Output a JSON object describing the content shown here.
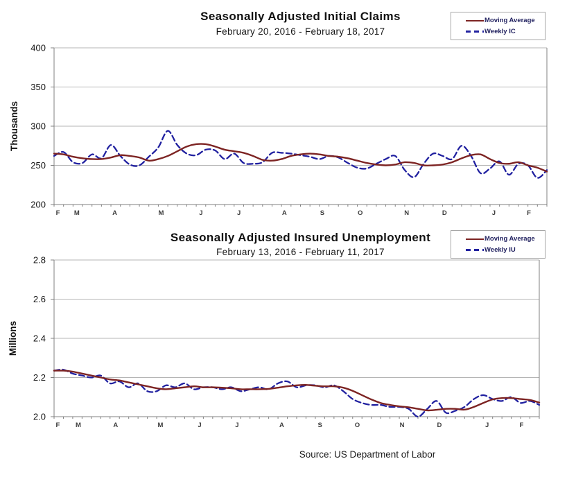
{
  "footer": {
    "source": "Source: US Department of Labor"
  },
  "colors": {
    "moving_average": "#7D2423",
    "weekly": "#2121A0",
    "gridline": "#B5B5B5",
    "axis": "#808080",
    "tick_text": "#141414",
    "month_text": "#3D3D3D",
    "legend_text": "#1F1F5E",
    "legend_border": "#A6A6A6"
  },
  "chart_data": [
    {
      "type": "line",
      "title": "Seasonally Adjusted Initial Claims",
      "subtitle": "February 20, 2016  -  February 18, 2017",
      "xlabel": "",
      "ylabel": "Thousands",
      "ylim": [
        200,
        400
      ],
      "yticks": [
        200,
        250,
        300,
        350,
        400
      ],
      "ytick_format": "int",
      "grid": true,
      "legend_position": "top-right",
      "month_ticks": [
        {
          "label": "F",
          "week": 0.4
        },
        {
          "label": "M",
          "week": 2.4
        },
        {
          "label": "A",
          "week": 6.4
        },
        {
          "label": "M",
          "week": 11.3
        },
        {
          "label": "J",
          "week": 15.5
        },
        {
          "label": "J",
          "week": 19.5
        },
        {
          "label": "A",
          "week": 24.3
        },
        {
          "label": "S",
          "week": 28.3
        },
        {
          "label": "O",
          "week": 32.3
        },
        {
          "label": "N",
          "week": 37.2
        },
        {
          "label": "D",
          "week": 41.2
        },
        {
          "label": "J",
          "week": 46.4
        },
        {
          "label": "F",
          "week": 50.1
        }
      ],
      "series": [
        {
          "name": "Moving Average",
          "style": "solid",
          "color": "#7D2423",
          "values": [
            265,
            264,
            261,
            259,
            258,
            258,
            260,
            263,
            262,
            260,
            256,
            258,
            262,
            268,
            274,
            277,
            277,
            274,
            270,
            268,
            266,
            262,
            257,
            256,
            258,
            262,
            264,
            265,
            264,
            262,
            261,
            259,
            256,
            253,
            251,
            250,
            251,
            254,
            253,
            250,
            250,
            251,
            254,
            259,
            263,
            264,
            258,
            253,
            252,
            254,
            250,
            247,
            242
          ]
        },
        {
          "name": "Weekly IC",
          "style": "dashed",
          "color": "#2121A0",
          "values": [
            262,
            267,
            254,
            253,
            264,
            259,
            276,
            262,
            251,
            250,
            261,
            273,
            294,
            276,
            265,
            263,
            270,
            269,
            258,
            265,
            253,
            252,
            254,
            266,
            266,
            265,
            263,
            261,
            258,
            262,
            260,
            253,
            247,
            246,
            252,
            258,
            262,
            244,
            235,
            252,
            265,
            262,
            258,
            275,
            262,
            240,
            246,
            255,
            238,
            252,
            250,
            234,
            244
          ]
        }
      ]
    },
    {
      "type": "line",
      "title": "Seasonally Adjusted Insured Unemployment",
      "subtitle": "February 13, 2016  -  February 11, 2017",
      "xlabel": "",
      "ylabel": "Millions",
      "ylim": [
        2.0,
        2.8
      ],
      "yticks": [
        2.0,
        2.2,
        2.4,
        2.6,
        2.8
      ],
      "ytick_format": "1dp",
      "grid": true,
      "legend_position": "top-right",
      "month_ticks": [
        {
          "label": "F",
          "week": 0.4
        },
        {
          "label": "M",
          "week": 2.6
        },
        {
          "label": "A",
          "week": 6.6
        },
        {
          "label": "M",
          "week": 11.4
        },
        {
          "label": "J",
          "week": 15.6
        },
        {
          "label": "J",
          "week": 19.6
        },
        {
          "label": "A",
          "week": 24.4
        },
        {
          "label": "S",
          "week": 28.5
        },
        {
          "label": "O",
          "week": 32.5
        },
        {
          "label": "N",
          "week": 37.3
        },
        {
          "label": "D",
          "week": 41.3
        },
        {
          "label": "J",
          "week": 46.4
        },
        {
          "label": "F",
          "week": 50.1
        }
      ],
      "series": [
        {
          "name": "Moving Average",
          "style": "solid",
          "color": "#7D2423",
          "values": [
            2.235,
            2.235,
            2.23,
            2.22,
            2.21,
            2.2,
            2.19,
            2.185,
            2.175,
            2.165,
            2.155,
            2.145,
            2.14,
            2.145,
            2.15,
            2.155,
            2.15,
            2.15,
            2.148,
            2.145,
            2.14,
            2.14,
            2.14,
            2.142,
            2.148,
            2.155,
            2.16,
            2.162,
            2.158,
            2.155,
            2.155,
            2.148,
            2.132,
            2.11,
            2.088,
            2.07,
            2.06,
            2.053,
            2.048,
            2.04,
            2.032,
            2.035,
            2.04,
            2.04,
            2.036,
            2.05,
            2.07,
            2.088,
            2.095,
            2.095,
            2.09,
            2.085,
            2.072
          ]
        },
        {
          "name": "Weekly IU",
          "style": "dashed",
          "color": "#2121A0",
          "values": [
            2.235,
            2.24,
            2.22,
            2.21,
            2.2,
            2.21,
            2.17,
            2.18,
            2.15,
            2.17,
            2.13,
            2.13,
            2.16,
            2.15,
            2.17,
            2.14,
            2.15,
            2.15,
            2.14,
            2.15,
            2.13,
            2.14,
            2.15,
            2.14,
            2.17,
            2.18,
            2.15,
            2.16,
            2.16,
            2.15,
            2.16,
            2.13,
            2.09,
            2.07,
            2.06,
            2.06,
            2.05,
            2.05,
            2.04,
            2.0,
            2.04,
            2.08,
            2.02,
            2.03,
            2.05,
            2.09,
            2.11,
            2.09,
            2.08,
            2.1,
            2.07,
            2.08,
            2.06
          ]
        }
      ]
    }
  ]
}
